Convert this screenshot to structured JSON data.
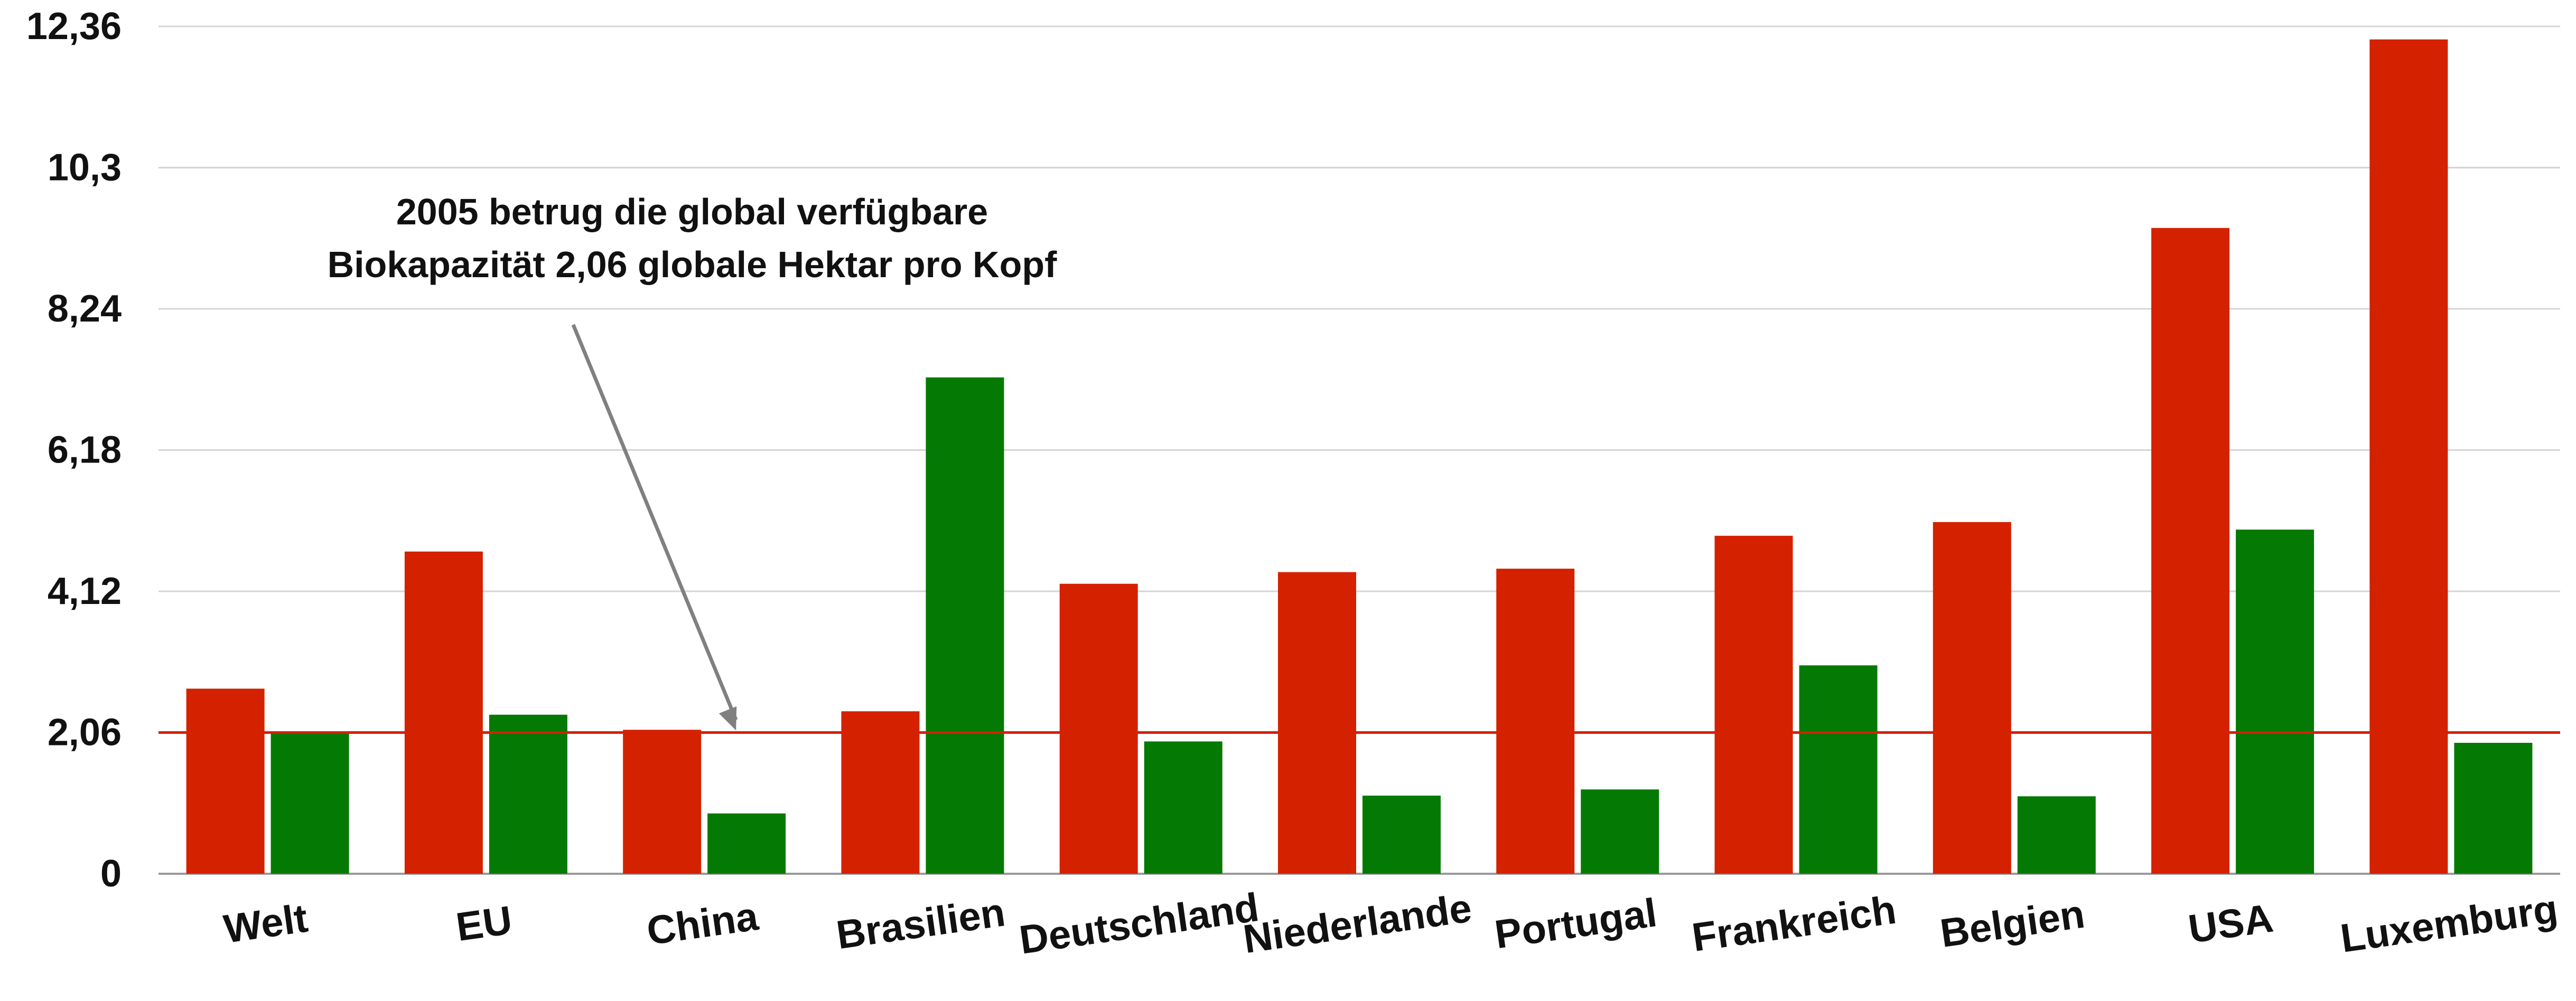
{
  "chart_data": {
    "type": "bar",
    "categories": [
      "Welt",
      "EU",
      "China",
      "Brasilien",
      "Deutschland",
      "Niederlande",
      "Portugal",
      "Frankreich",
      "Belgien",
      "USA",
      "Luxemburg"
    ],
    "series": [
      {
        "color": "#d42100",
        "values": [
          2.7,
          4.7,
          2.1,
          2.37,
          4.23,
          4.4,
          4.45,
          4.93,
          5.13,
          9.42,
          12.17
        ]
      },
      {
        "color": "#047a04",
        "values": [
          2.06,
          2.32,
          0.88,
          7.24,
          1.93,
          1.14,
          1.23,
          3.04,
          1.13,
          5.02,
          1.91
        ]
      }
    ],
    "yticks": [
      "0",
      "2,06",
      "4,12",
      "6,18",
      "8,24",
      "10,3",
      "12,36"
    ],
    "ylim": [
      0,
      12.36
    ],
    "grid": true,
    "reference_line": {
      "value": 2.06,
      "color": "#d42100"
    },
    "annotation": {
      "lines": [
        "2005 betrug die global verfügbare",
        "Biokapazität 2,06 globale Hektar pro Kopf"
      ],
      "target_category": "China",
      "target_value": 2.06,
      "arrow_color": "#808080"
    }
  }
}
